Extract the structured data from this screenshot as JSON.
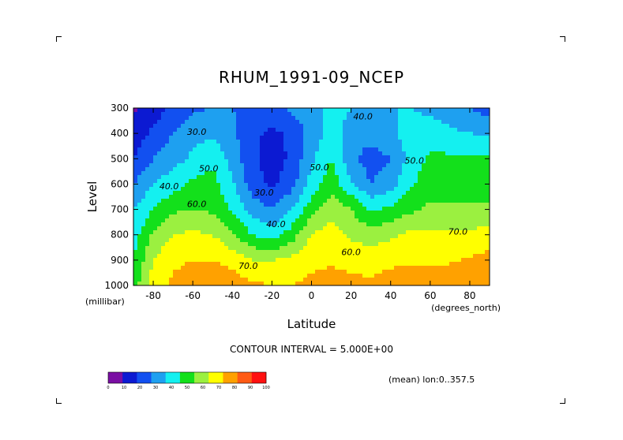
{
  "title": "RHUM_1991-09_NCEP",
  "contour_interval": "CONTOUR INTERVAL = 5.000E+00",
  "mean_note": "(mean) lon:0..357.5",
  "chart_data": {
    "type": "heatmap",
    "title": "RHUM_1991-09_NCEP",
    "xlabel": "Latitude",
    "xunits": "(degrees_north)",
    "ylabel": "Level",
    "yunits": "(millibar)",
    "xlim": [
      -90,
      90
    ],
    "ylim": [
      1000,
      300
    ],
    "y_inverted": true,
    "xticks": [
      -80,
      -60,
      -40,
      -20,
      0,
      20,
      40,
      60,
      80
    ],
    "yticks": [
      300,
      400,
      500,
      600,
      700,
      800,
      900,
      1000
    ],
    "contour_interval": 5,
    "x": [
      -90,
      -80,
      -70,
      -60,
      -50,
      -40,
      -30,
      -20,
      -10,
      0,
      10,
      20,
      30,
      40,
      50,
      60,
      70,
      80,
      90
    ],
    "levels": [
      1000,
      900,
      800,
      700,
      600,
      500,
      400,
      300
    ],
    "z": [
      [
        55,
        75,
        82,
        86,
        88,
        86,
        82,
        80,
        80,
        82,
        83,
        82,
        82,
        84,
        85,
        85,
        86,
        86,
        85
      ],
      [
        50,
        70,
        78,
        80,
        80,
        76,
        70,
        70,
        73,
        78,
        79,
        78,
        76,
        78,
        79,
        79,
        79,
        81,
        84
      ],
      [
        45,
        62,
        70,
        72,
        70,
        62,
        50,
        45,
        55,
        70,
        75,
        68,
        65,
        68,
        72,
        72,
        72,
        72,
        74
      ],
      [
        40,
        50,
        58,
        60,
        58,
        48,
        36,
        30,
        40,
        56,
        66,
        60,
        48,
        52,
        58,
        62,
        62,
        62,
        62
      ],
      [
        30,
        40,
        46,
        52,
        54,
        42,
        25,
        18,
        26,
        44,
        56,
        42,
        30,
        36,
        48,
        56,
        56,
        56,
        56
      ],
      [
        20,
        30,
        36,
        42,
        48,
        36,
        22,
        15,
        22,
        38,
        50,
        32,
        25,
        30,
        44,
        52,
        52,
        52,
        52
      ],
      [
        15,
        22,
        30,
        36,
        38,
        32,
        22,
        18,
        22,
        34,
        44,
        36,
        34,
        38,
        44,
        44,
        42,
        40,
        38
      ],
      [
        8,
        15,
        22,
        28,
        30,
        30,
        28,
        28,
        32,
        36,
        44,
        40,
        40,
        40,
        40,
        38,
        36,
        30,
        25
      ]
    ],
    "contour_labels": [
      {
        "text": "30.0",
        "x": -58,
        "y": 405
      },
      {
        "text": "40.0",
        "x": 26,
        "y": 345
      },
      {
        "text": "50.0",
        "x": -52,
        "y": 550
      },
      {
        "text": "40.0",
        "x": -72,
        "y": 620
      },
      {
        "text": "30.0",
        "x": -24,
        "y": 645
      },
      {
        "text": "40.0",
        "x": -18,
        "y": 770
      },
      {
        "text": "50.0",
        "x": 4,
        "y": 545
      },
      {
        "text": "50.0",
        "x": 52,
        "y": 520
      },
      {
        "text": "60.0",
        "x": -58,
        "y": 690
      },
      {
        "text": "60.0",
        "x": 20,
        "y": 880
      },
      {
        "text": "70.0",
        "x": 74,
        "y": 800
      },
      {
        "text": "70.0",
        "x": -32,
        "y": 935
      }
    ],
    "colorbar": {
      "ticks": [
        "0",
        "10",
        "20",
        "30",
        "40",
        "50",
        "60",
        "70",
        "80",
        "90",
        "100"
      ],
      "colors": [
        "#7a0ea3",
        "#0c1ad2",
        "#1250f0",
        "#1ea0f0",
        "#14f0f0",
        "#13e01b",
        "#9bf040",
        "#ffff00",
        "#ffa100",
        "#ff5a14",
        "#ff1010"
      ]
    }
  }
}
